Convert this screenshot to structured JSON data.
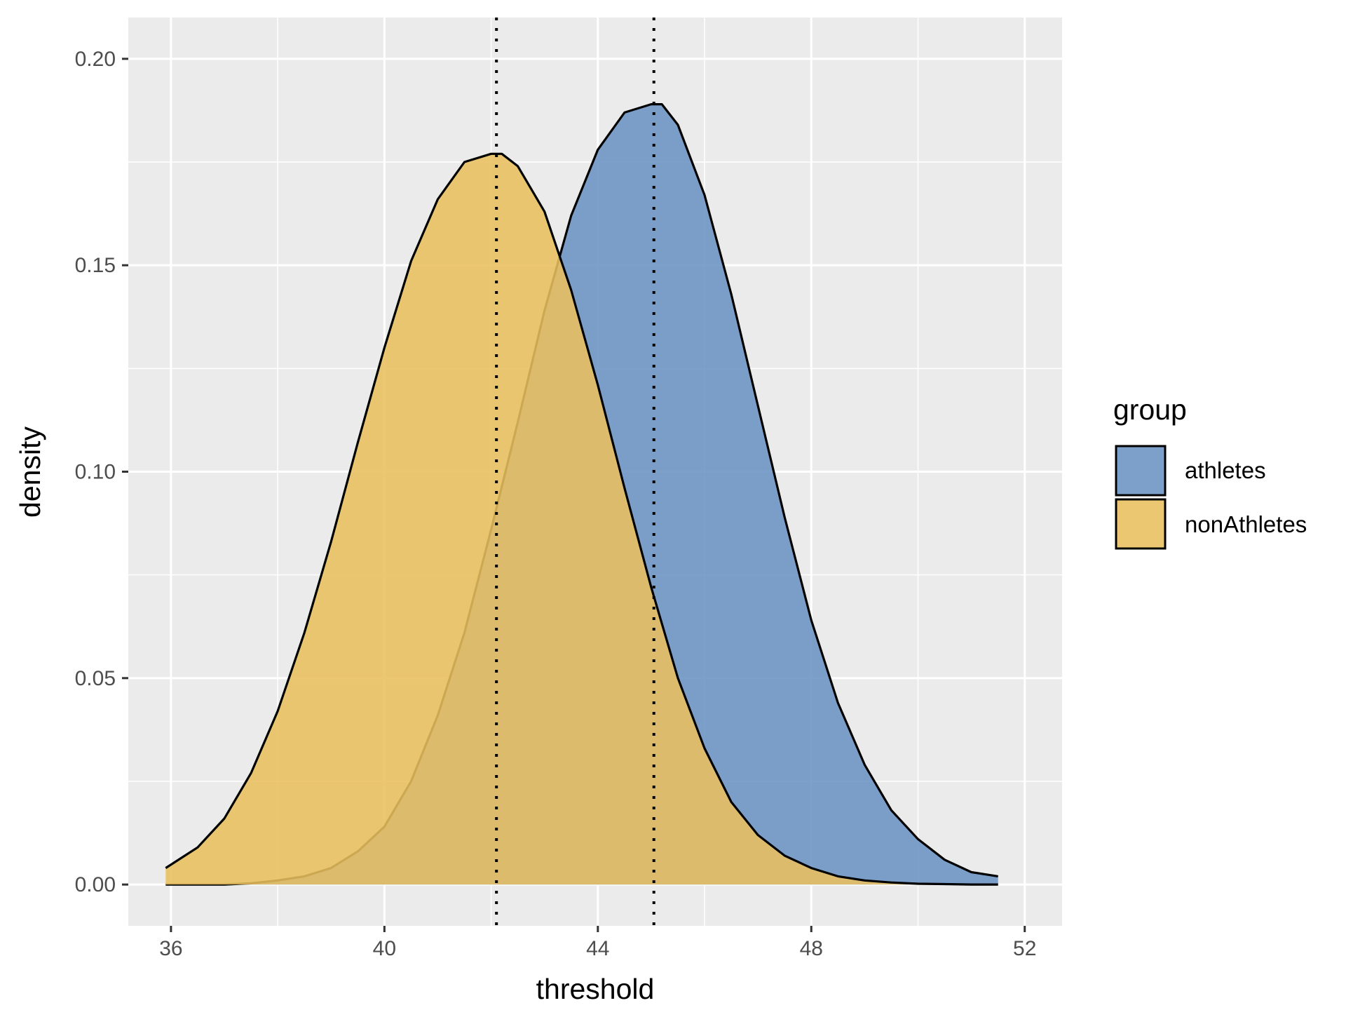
{
  "chart_data": {
    "type": "area",
    "xlabel": "threshold",
    "ylabel": "density",
    "xlim": [
      35.2,
      52.7
    ],
    "ylim": [
      -0.01,
      0.21
    ],
    "x_ticks": [
      36,
      40,
      44,
      48,
      52
    ],
    "x_tick_labels": [
      "36",
      "40",
      "44",
      "48",
      "52"
    ],
    "y_ticks": [
      0.0,
      0.05,
      0.1,
      0.15,
      0.2
    ],
    "y_tick_labels": [
      "0.00",
      "0.05",
      "0.10",
      "0.15",
      "0.20"
    ],
    "x_minor_ticks": [
      38,
      42,
      46,
      50
    ],
    "y_minor_ticks": [
      0.025,
      0.075,
      0.125,
      0.175
    ],
    "grid": true,
    "legend": {
      "title": "group",
      "position": "right",
      "entries": [
        "athletes",
        "nonAthletes"
      ]
    },
    "series": [
      {
        "name": "athletes",
        "color": "#6b93c4",
        "x": [
          35.9,
          36.5,
          37.0,
          37.5,
          38.0,
          38.5,
          39.0,
          39.5,
          40.0,
          40.5,
          41.0,
          41.5,
          42.0,
          42.5,
          43.0,
          43.5,
          44.0,
          44.5,
          45.0,
          45.2,
          45.5,
          46.0,
          46.5,
          47.0,
          47.5,
          48.0,
          48.5,
          49.0,
          49.5,
          50.0,
          50.5,
          51.0,
          51.5
        ],
        "y": [
          0.0,
          0.0,
          0.0,
          0.0003,
          0.001,
          0.002,
          0.004,
          0.008,
          0.014,
          0.025,
          0.041,
          0.061,
          0.086,
          0.112,
          0.139,
          0.162,
          0.178,
          0.187,
          0.189,
          0.189,
          0.184,
          0.167,
          0.143,
          0.116,
          0.089,
          0.064,
          0.044,
          0.029,
          0.018,
          0.011,
          0.006,
          0.003,
          0.002
        ]
      },
      {
        "name": "nonAthletes",
        "color": "#e9bf5f",
        "x": [
          35.9,
          36.5,
          37.0,
          37.5,
          38.0,
          38.5,
          39.0,
          39.5,
          40.0,
          40.5,
          41.0,
          41.5,
          42.0,
          42.2,
          42.5,
          43.0,
          43.5,
          44.0,
          44.5,
          45.0,
          45.5,
          46.0,
          46.5,
          47.0,
          47.5,
          48.0,
          48.5,
          49.0,
          49.5,
          50.0,
          50.5,
          51.0,
          51.5
        ],
        "y": [
          0.004,
          0.009,
          0.016,
          0.027,
          0.042,
          0.061,
          0.083,
          0.107,
          0.13,
          0.151,
          0.166,
          0.175,
          0.177,
          0.177,
          0.174,
          0.163,
          0.144,
          0.121,
          0.096,
          0.072,
          0.05,
          0.033,
          0.02,
          0.012,
          0.007,
          0.004,
          0.002,
          0.001,
          0.0005,
          0.0002,
          0.0001,
          0.0,
          0.0
        ]
      }
    ],
    "vlines": [
      {
        "x": 42.1,
        "style": "dotted"
      },
      {
        "x": 45.05,
        "style": "dotted"
      }
    ]
  }
}
